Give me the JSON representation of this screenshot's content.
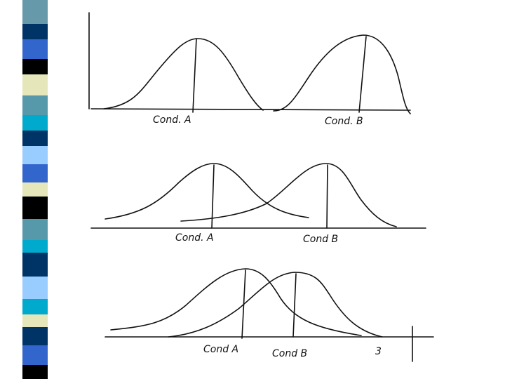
{
  "panels": [
    {
      "labels": [
        "Cond. A",
        "Cond. B"
      ]
    },
    {
      "labels": [
        "Cond. A",
        "Cond B"
      ]
    },
    {
      "labels": [
        "Cond A",
        "Cond B"
      ]
    }
  ],
  "page_number": "3"
}
